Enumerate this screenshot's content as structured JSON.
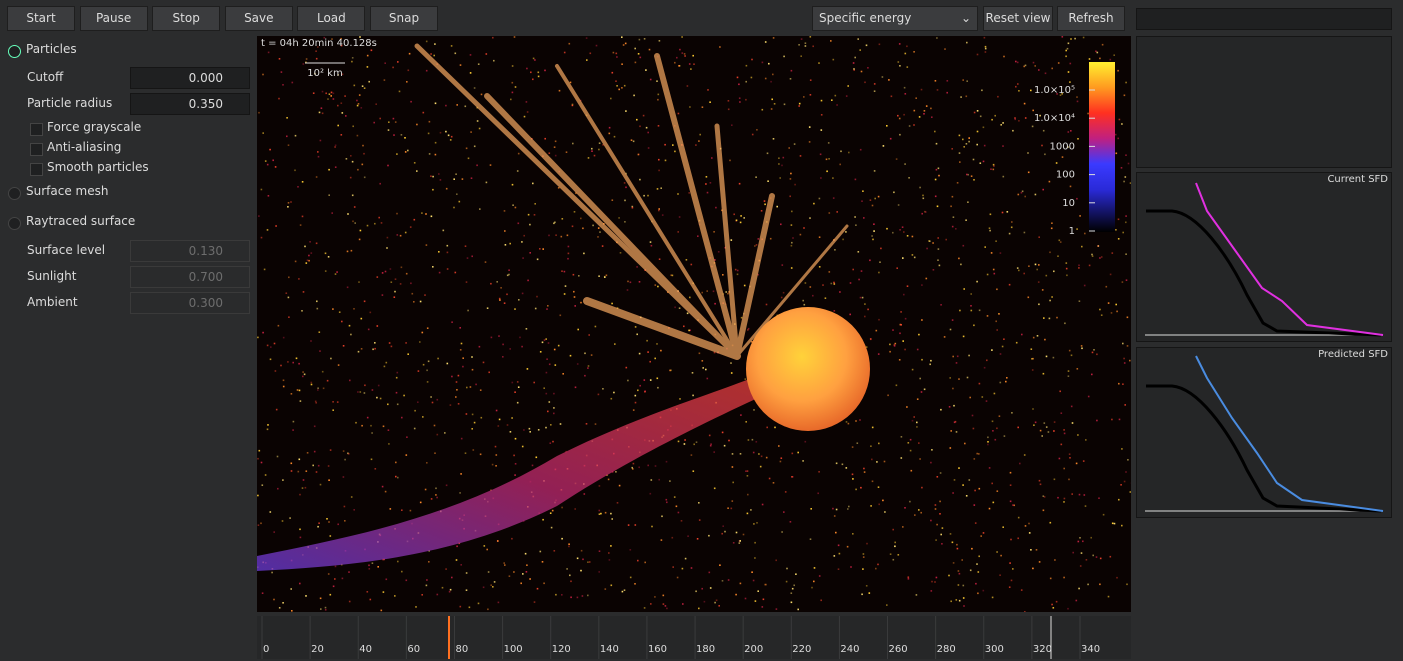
{
  "toolbar": {
    "buttons": [
      "Start",
      "Pause",
      "Stop",
      "Save",
      "Load",
      "Snap"
    ],
    "quantity": "Specific energy",
    "reset": "Reset view",
    "refresh": "Refresh"
  },
  "panel": {
    "particles": "Particles",
    "fields": [
      {
        "label": "Cutoff",
        "value": "0.000"
      },
      {
        "label": "Particle radius",
        "value": "0.350"
      }
    ],
    "checkboxes": [
      "Force grayscale",
      "Anti-aliasing",
      "Smooth particles"
    ],
    "surface_mesh": "Surface mesh",
    "raytraced": "Raytraced surface",
    "surface_fields": [
      {
        "label": "Surface level",
        "value": "0.130"
      },
      {
        "label": "Sunlight",
        "value": "0.700"
      },
      {
        "label": "Ambient",
        "value": "0.300"
      }
    ]
  },
  "viewport": {
    "time": "t = 04h 20min 40.128s",
    "scale": "10² km",
    "colorbar": [
      "1.0×10⁵",
      "1.0×10⁴",
      "1000",
      "100",
      "10",
      "1"
    ]
  },
  "timeline": {
    "ticks": [
      0,
      20,
      40,
      60,
      80,
      100,
      120,
      140,
      160,
      180,
      200,
      220,
      240,
      260,
      280,
      300,
      320,
      340
    ]
  },
  "plots": {
    "current": "Current SFD",
    "predicted": "Predicted SFD"
  }
}
